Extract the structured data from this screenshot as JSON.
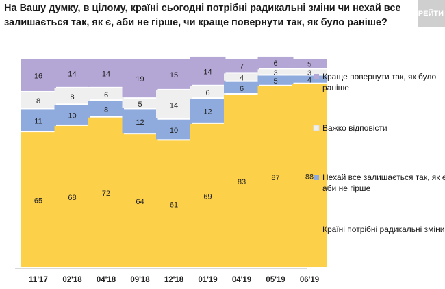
{
  "title": "На Вашу думку, в цілому, країні сьогодні потрібні радикальні зміни чи нехай все залишається так, як є, аби не гірше, чи краще повернути так, як було раніше?",
  "logo_text": "РЕЙТИ",
  "chart_data": {
    "type": "bar",
    "stacked": true,
    "normalized_total": 100,
    "categories": [
      "11'17",
      "02'18",
      "04'18",
      "09'18",
      "12'18",
      "01'19",
      "04'19",
      "05'19",
      "06'19"
    ],
    "series": [
      {
        "name": "Країні потрібні радикальні зміни",
        "color": "#fdd04a",
        "values": [
          65,
          68,
          72,
          64,
          61,
          69,
          83,
          87,
          88
        ]
      },
      {
        "name": "Нехай все залишається так, як є, аби не гірше",
        "color": "#8faadc",
        "values": [
          11,
          10,
          8,
          12,
          10,
          12,
          6,
          5,
          4
        ]
      },
      {
        "name": "Важко відповісти",
        "color": "#efefef",
        "values": [
          8,
          8,
          6,
          5,
          14,
          6,
          4,
          3,
          3
        ]
      },
      {
        "name": "Краще повернути так, як було раніше",
        "color": "#b4a7d6",
        "values": [
          16,
          14,
          14,
          19,
          15,
          14,
          7,
          6,
          5
        ]
      }
    ],
    "legend": [
      {
        "label_lines": [
          "Краще повернути так, як було",
          "раніше"
        ],
        "color": "#b4a7d6"
      },
      {
        "label_lines": [
          "Важко відповісти"
        ],
        "color": "#efefef"
      },
      {
        "label_lines": [
          "Нехай все залишається так, як є,",
          "аби не гірше"
        ],
        "color": "#8faadc"
      },
      {
        "label_lines": [
          "Країні потрібні радикальні зміни"
        ],
        "color": "#fdd04a"
      }
    ],
    "legend_position": "right",
    "grid": false
  }
}
